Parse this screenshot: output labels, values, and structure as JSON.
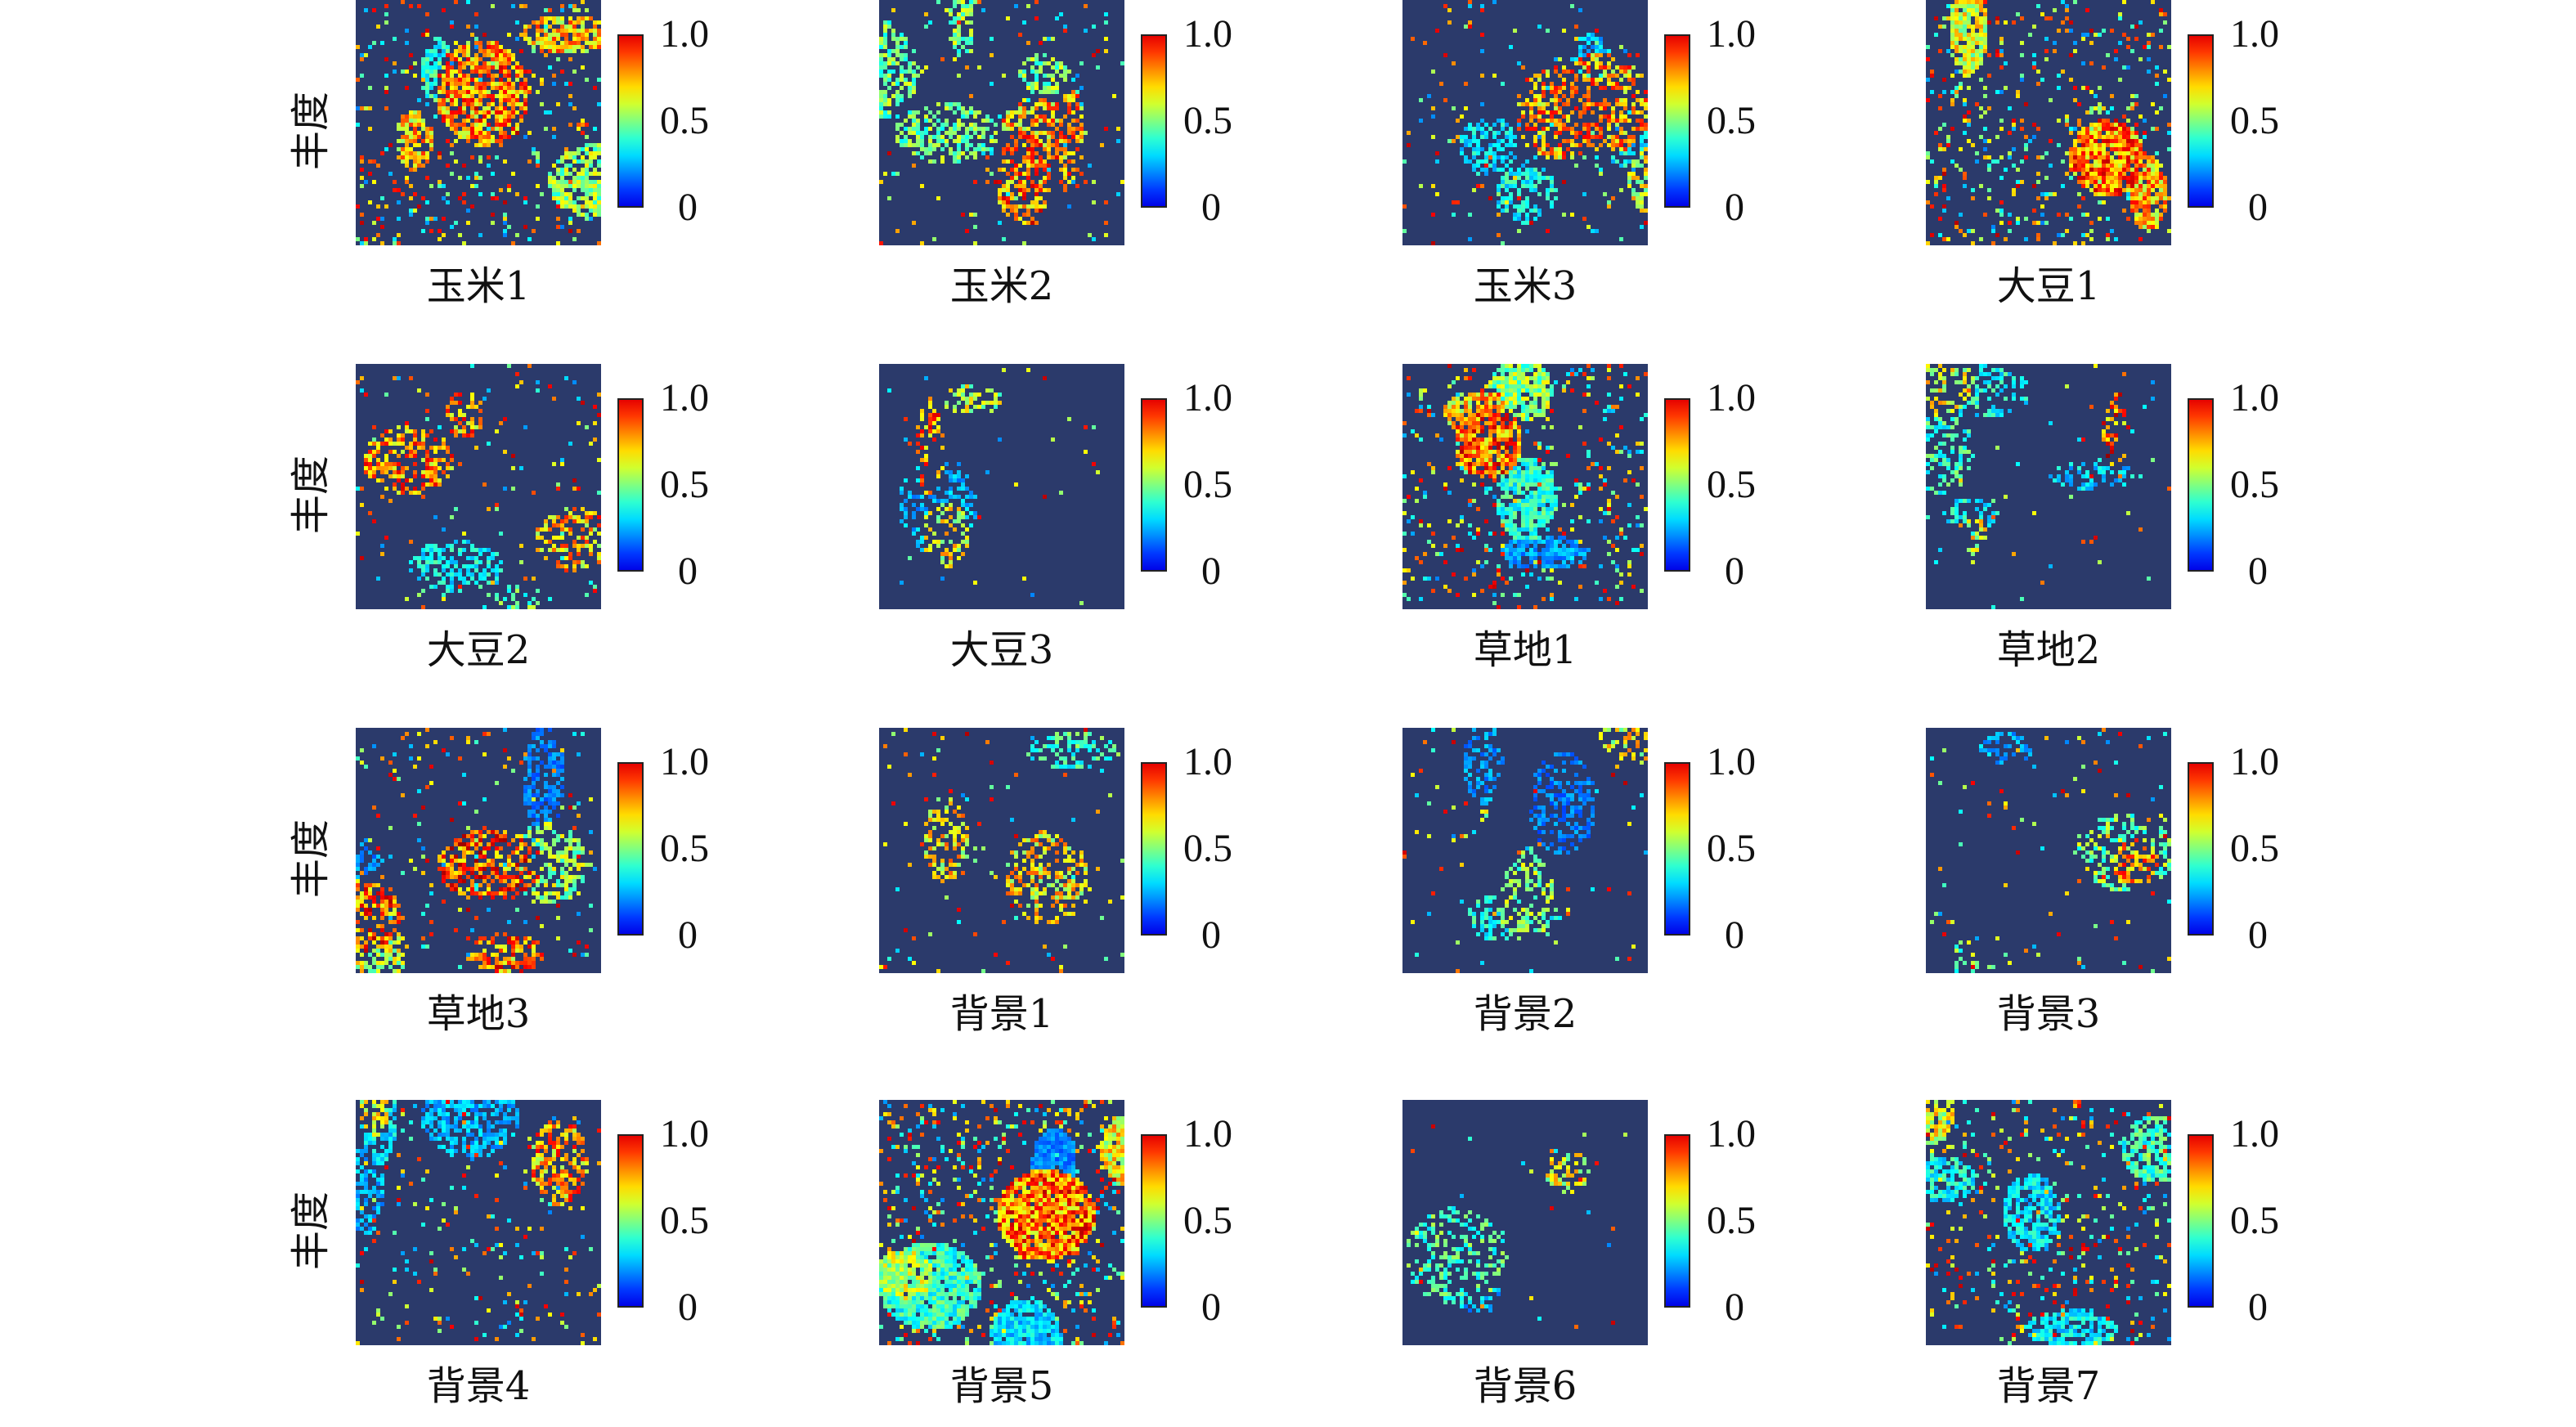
{
  "chart_data": {
    "type": "heatmap",
    "ylabel": "丰度",
    "colormap": "jet",
    "colorbar": {
      "range": [
        0,
        1.0
      ],
      "ticks": [
        "0",
        "0.5",
        "1.0"
      ]
    },
    "background_color": "#2b3a6b",
    "panels": [
      {
        "label": "玉米1",
        "density": 0.42,
        "seed": 11
      },
      {
        "label": "玉米2",
        "density": 0.18,
        "seed": 23
      },
      {
        "label": "玉米3",
        "density": 0.16,
        "seed": 37
      },
      {
        "label": "大豆1",
        "density": 0.55,
        "seed": 41
      },
      {
        "label": "大豆2",
        "density": 0.14,
        "seed": 53
      },
      {
        "label": "大豆3",
        "density": 0.04,
        "seed": 67
      },
      {
        "label": "草地1",
        "density": 0.48,
        "seed": 71
      },
      {
        "label": "草地2",
        "density": 0.05,
        "seed": 83
      },
      {
        "label": "草地3",
        "density": 0.2,
        "seed": 97
      },
      {
        "label": "背景1",
        "density": 0.1,
        "seed": 101
      },
      {
        "label": "背景2",
        "density": 0.08,
        "seed": 113
      },
      {
        "label": "背景3",
        "density": 0.09,
        "seed": 127
      },
      {
        "label": "背景4",
        "density": 0.26,
        "seed": 131
      },
      {
        "label": "背景5",
        "density": 0.58,
        "seed": 149
      },
      {
        "label": "背景6",
        "density": 0.03,
        "seed": 151
      },
      {
        "label": "背景7",
        "density": 0.4,
        "seed": 163
      }
    ]
  }
}
